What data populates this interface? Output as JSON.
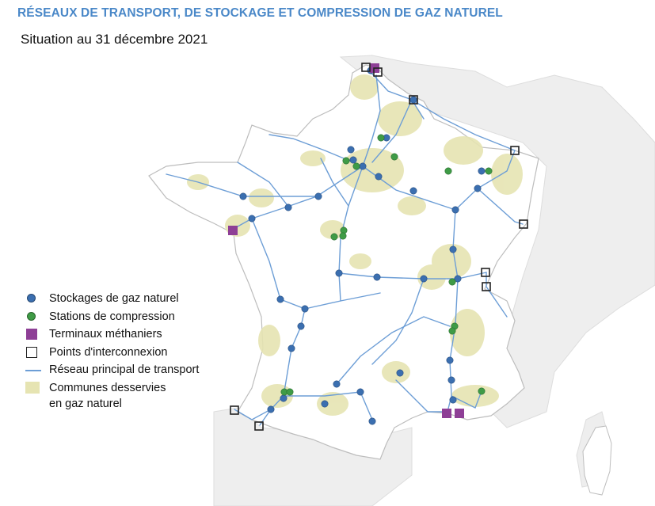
{
  "title": "RÉSEAUX DE TRANSPORT, DE STOCKAGE ET COMPRESSION DE GAZ NATUREL",
  "subtitle": "Situation au 31 décembre 2021",
  "colors": {
    "title": "#4a88c8",
    "storage": "#3b6fb0",
    "compression": "#3f9b46",
    "lng_terminal": "#8e3f96",
    "interconnection": "#222222",
    "network": "#6d9ed6",
    "served_area": "#e6e4b2",
    "land": "#ffffff",
    "neighbors": "#eeeeee"
  },
  "legend": {
    "storage": "Stockages de gaz naturel",
    "compression": "Stations de compression",
    "lng_terminals": "Terminaux méthaniers",
    "interconnection": "Points d'interconnexion",
    "network": "Réseau principal de transport",
    "served_line1": "Communes desservies",
    "served_line2": "en gaz naturel"
  }
}
